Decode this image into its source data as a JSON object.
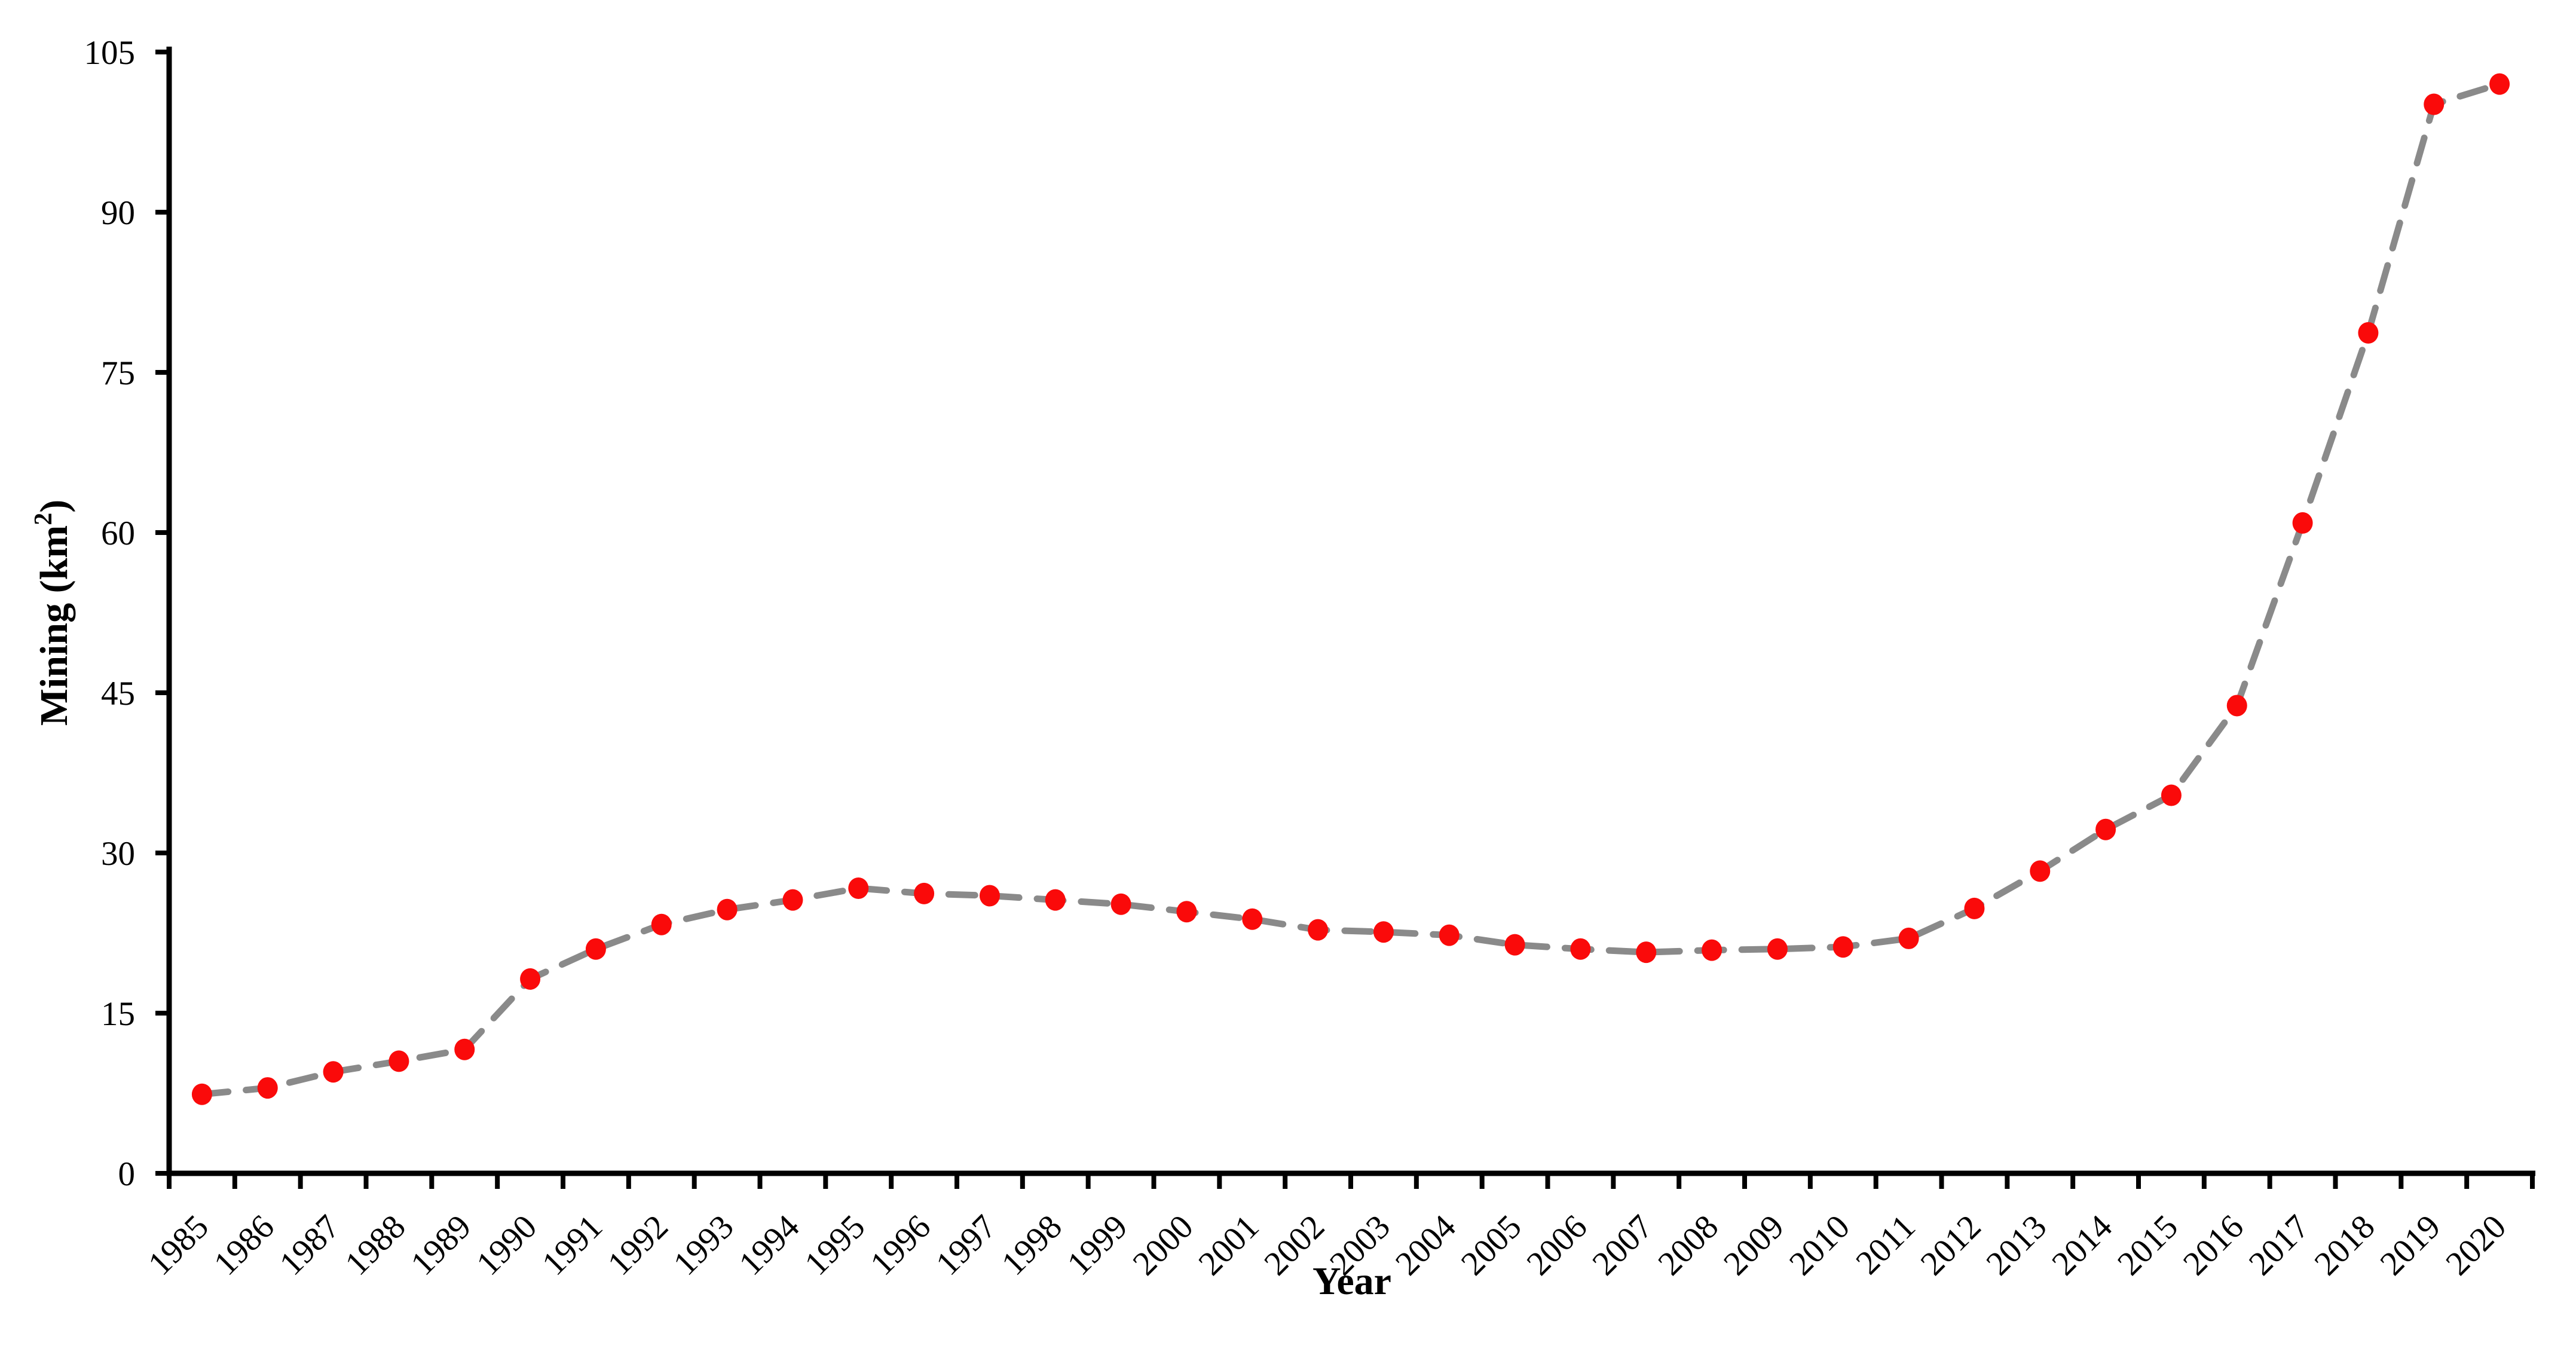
{
  "chart_data": {
    "type": "line",
    "title": "",
    "xlabel": "Year",
    "ylabel": "Mining (km²)",
    "ylabel_parts": {
      "prefix": "Mining (km",
      "sup": "2",
      "suffix": ")"
    },
    "x": [
      1985,
      1986,
      1987,
      1988,
      1989,
      1990,
      1991,
      1992,
      1993,
      1994,
      1995,
      1996,
      1997,
      1998,
      1999,
      2000,
      2001,
      2002,
      2003,
      2004,
      2005,
      2006,
      2007,
      2008,
      2009,
      2010,
      2011,
      2012,
      2013,
      2014,
      2015,
      2016,
      2017,
      2018,
      2019,
      2020
    ],
    "values": [
      7.4,
      8.0,
      9.5,
      10.5,
      11.6,
      18.2,
      21.0,
      23.3,
      24.7,
      25.6,
      26.7,
      26.2,
      26.0,
      25.6,
      25.2,
      24.5,
      23.8,
      22.8,
      22.6,
      22.3,
      21.4,
      21.0,
      20.7,
      20.9,
      21.0,
      21.2,
      22.0,
      24.8,
      28.3,
      32.2,
      35.4,
      43.8,
      60.9,
      78.7,
      100.1,
      102.0
    ],
    "ylim": [
      0,
      105
    ],
    "yticks": [
      0,
      15,
      30,
      45,
      60,
      75,
      90,
      105
    ],
    "grid": false,
    "legend_position": "none",
    "line_style": "dashed",
    "line_color": "#8a8a8a",
    "marker_shape": "circle",
    "marker_color": "#fa0a0a",
    "axis_color": "#000000",
    "background_color": "#ffffff"
  }
}
